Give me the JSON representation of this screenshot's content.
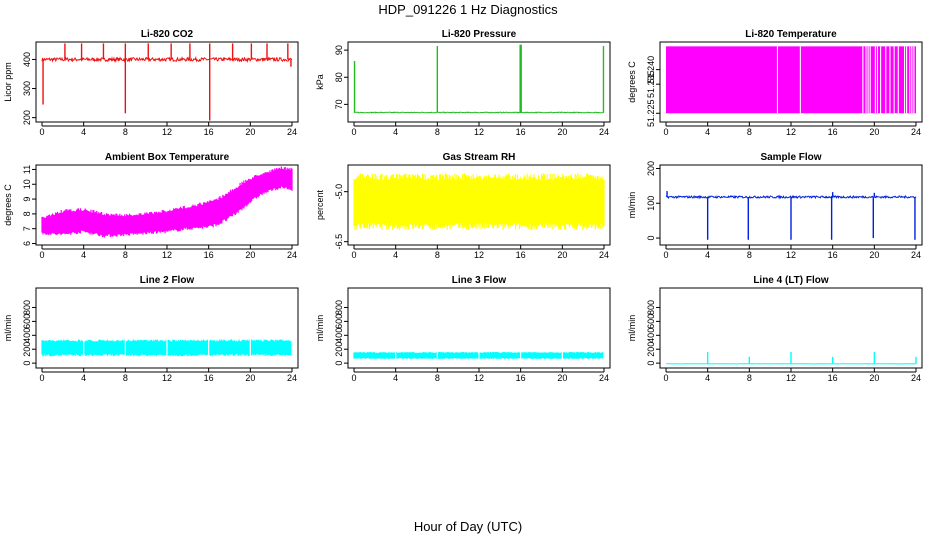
{
  "title": "HDP_091226  1 Hz Diagnostics",
  "xlabel": "Hour of Day (UTC)",
  "chart_data": [
    {
      "id": "co2",
      "type": "line",
      "title": "Li-820 CO2",
      "ylabel": "Licor ppm",
      "color": "#ee1111",
      "xlim": [
        0,
        24
      ],
      "xticks": [
        0,
        4,
        8,
        12,
        16,
        20,
        24
      ],
      "ylim": [
        185,
        460
      ],
      "yticks": [
        200,
        300,
        400
      ],
      "series": [
        {
          "name": "CO2",
          "baseline": 400,
          "noise": 12,
          "spikes_up": [
            {
              "x": 2.2,
              "y": 455
            },
            {
              "x": 3.8,
              "y": 455
            },
            {
              "x": 5.9,
              "y": 455
            },
            {
              "x": 8.0,
              "y": 455
            },
            {
              "x": 10.2,
              "y": 455
            },
            {
              "x": 12.4,
              "y": 455
            },
            {
              "x": 14.2,
              "y": 455
            },
            {
              "x": 16.1,
              "y": 455
            },
            {
              "x": 18.3,
              "y": 455
            },
            {
              "x": 20.1,
              "y": 455
            },
            {
              "x": 21.6,
              "y": 455
            },
            {
              "x": 23.6,
              "y": 455
            }
          ],
          "spikes_down": [
            {
              "x": 0.1,
              "y": 245
            },
            {
              "x": 8.0,
              "y": 215
            },
            {
              "x": 16.1,
              "y": 190
            },
            {
              "x": 23.9,
              "y": 375
            }
          ]
        }
      ]
    },
    {
      "id": "pressure",
      "type": "line",
      "title": "Li-820 Pressure",
      "ylabel": "kPa",
      "color": "#22bb22",
      "xlim": [
        0,
        24
      ],
      "xticks": [
        0,
        4,
        8,
        12,
        16,
        20,
        24
      ],
      "ylim": [
        63.5,
        93
      ],
      "yticks": [
        70,
        80,
        90
      ],
      "series": [
        {
          "name": "Pressure",
          "baseline": 67.0,
          "noise": 0.3,
          "spikes_up": [
            {
              "x": 0.05,
              "y": 86
            },
            {
              "x": 8.0,
              "y": 91.5
            },
            {
              "x": 15.95,
              "y": 92
            },
            {
              "x": 16.05,
              "y": 92
            },
            {
              "x": 23.95,
              "y": 91.5
            }
          ],
          "spikes_down": []
        }
      ]
    },
    {
      "id": "temp820",
      "type": "line",
      "title": "Li-820 Temperature",
      "ylabel": "degrees C",
      "color": "#ff00ff",
      "xlim": [
        0,
        24
      ],
      "xticks": [
        0,
        4,
        8,
        12,
        16,
        20,
        24
      ],
      "ylim": [
        51.222,
        51.2495
      ],
      "yticks": [
        51.225,
        51.235,
        51.24
      ],
      "ytick_labels": [
        "51.225",
        "51.235",
        "51.240"
      ],
      "fill_range": [
        51.225,
        51.248
      ],
      "gaps": [
        10.7,
        12.9,
        18.9,
        19.2,
        19.4,
        19.6,
        20.1,
        20.3,
        20.6,
        21.1,
        21.5,
        21.9,
        22.3,
        22.9,
        23.1,
        23.4,
        23.6,
        23.8
      ]
    },
    {
      "id": "ambient",
      "type": "band",
      "title": "Ambient Box Temperature",
      "ylabel": "degrees C",
      "color": "#ff00ff",
      "xlim": [
        0,
        24
      ],
      "xticks": [
        0,
        4,
        8,
        12,
        16,
        20,
        24
      ],
      "ylim": [
        5.9,
        11.3
      ],
      "yticks": [
        6,
        7,
        8,
        9,
        10,
        11
      ],
      "x": [
        0,
        2,
        4,
        6,
        8,
        10,
        12,
        14,
        16,
        17,
        18,
        19,
        20,
        21,
        22,
        23,
        24
      ],
      "low": [
        6.6,
        6.5,
        6.7,
        6.4,
        6.5,
        6.6,
        6.7,
        6.9,
        7.0,
        7.2,
        7.6,
        8.1,
        8.7,
        9.2,
        9.5,
        9.7,
        9.5
      ],
      "high": [
        7.8,
        8.3,
        8.4,
        8.1,
        8.0,
        8.1,
        8.3,
        8.6,
        8.9,
        9.2,
        9.6,
        10.1,
        10.5,
        10.8,
        11.0,
        11.2,
        11.1
      ]
    },
    {
      "id": "rh",
      "type": "band",
      "title": "Gas Stream RH",
      "ylabel": "percent",
      "color": "#ffff00",
      "xlim": [
        0,
        24
      ],
      "xticks": [
        0,
        4,
        8,
        12,
        16,
        20,
        24
      ],
      "ylim": [
        -6.6,
        -4.2
      ],
      "yticks": [
        -6.5,
        -5.0
      ],
      "ytick_labels": [
        "-6.5",
        "-5.0"
      ],
      "x": [
        0,
        24
      ],
      "low": [
        -6.15,
        -6.15
      ],
      "high": [
        -4.45,
        -4.45
      ]
    },
    {
      "id": "sample",
      "type": "line",
      "title": "Sample Flow",
      "ylabel": "ml/min",
      "color": "#0022dd",
      "xlim": [
        0,
        24
      ],
      "xticks": [
        0,
        4,
        8,
        12,
        16,
        20,
        24
      ],
      "ylim": [
        -20,
        210
      ],
      "yticks": [
        0,
        100,
        200
      ],
      "series": [
        {
          "name": "Sample",
          "baseline": 118,
          "noise": 6,
          "spikes_up": [
            {
              "x": 0.1,
              "y": 135
            },
            {
              "x": 16.0,
              "y": 132
            },
            {
              "x": 20.0,
              "y": 130
            }
          ],
          "spikes_down": [
            {
              "x": 4.0,
              "y": -5
            },
            {
              "x": 7.9,
              "y": -5
            },
            {
              "x": 12.0,
              "y": -5
            },
            {
              "x": 15.9,
              "y": -5
            },
            {
              "x": 19.9,
              "y": 0
            },
            {
              "x": 23.9,
              "y": -5
            }
          ]
        }
      ]
    },
    {
      "id": "line2",
      "type": "band",
      "title": "Line 2 Flow",
      "ylabel": "ml/min",
      "color": "#00ffff",
      "xlim": [
        0,
        24
      ],
      "xticks": [
        0,
        4,
        8,
        12,
        16,
        20,
        24
      ],
      "ylim": [
        -70,
        1080
      ],
      "yticks": [
        0,
        200,
        400,
        600,
        800
      ],
      "x": [
        0,
        24
      ],
      "low": [
        100,
        100
      ],
      "high": [
        340,
        340
      ],
      "gaps": [
        4.0,
        8.0,
        12.0,
        16.0,
        20.0,
        24.0
      ]
    },
    {
      "id": "line3",
      "type": "band",
      "title": "Line 3 Flow",
      "ylabel": "ml/min",
      "color": "#00ffff",
      "xlim": [
        0,
        24
      ],
      "xticks": [
        0,
        4,
        8,
        12,
        16,
        20,
        24
      ],
      "ylim": [
        -70,
        1080
      ],
      "yticks": [
        0,
        200,
        400,
        600,
        800
      ],
      "x": [
        0,
        24
      ],
      "low": [
        60,
        60
      ],
      "high": [
        160,
        160
      ],
      "gaps": [
        4.0,
        8.0,
        12.0,
        16.0,
        20.0,
        24.0
      ]
    },
    {
      "id": "line4",
      "type": "line",
      "title": "Line 4 (LT) Flow",
      "ylabel": "ml/min",
      "color": "#00ffff",
      "xlim": [
        0,
        24
      ],
      "xticks": [
        0,
        4,
        8,
        12,
        16,
        20,
        24
      ],
      "ylim": [
        -70,
        1080
      ],
      "yticks": [
        0,
        200,
        400,
        600,
        800
      ],
      "series": [
        {
          "name": "Line4",
          "baseline": -10,
          "noise": 5,
          "spikes_up": [
            {
              "x": 4.0,
              "y": 160
            },
            {
              "x": 8.0,
              "y": 90
            },
            {
              "x": 12.0,
              "y": 160
            },
            {
              "x": 16.0,
              "y": 90
            },
            {
              "x": 20.0,
              "y": 160
            },
            {
              "x": 24.0,
              "y": 90
            }
          ],
          "spikes_down": []
        }
      ]
    }
  ]
}
